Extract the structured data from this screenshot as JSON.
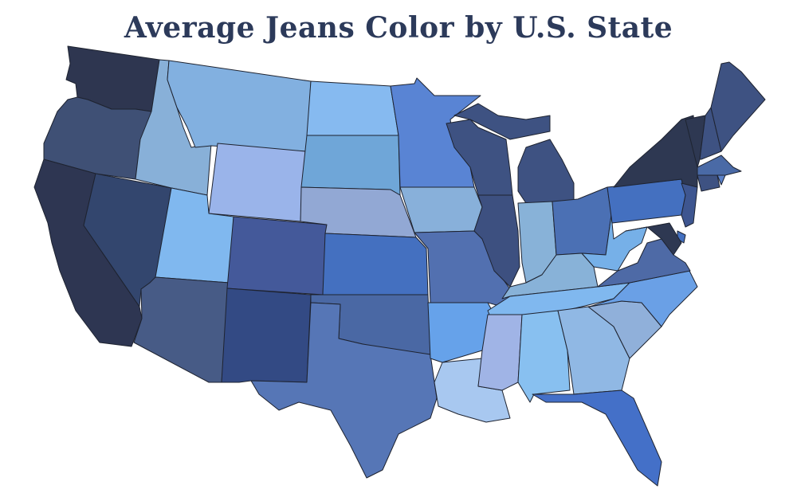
{
  "title": "Average Jeans Color by U.S. State",
  "map": {
    "type": "choropleth",
    "region": "United States (contiguous)",
    "border_color": "#1e2330",
    "state_colors": {
      "WA": "#2e3650",
      "OR": "#3f5075",
      "CA": "#2e3652",
      "NV": "#33466e",
      "ID": "#88b0d8",
      "MT": "#82b0e0",
      "WY": "#9ab4ea",
      "UT": "#80b8ef",
      "AZ": "#475b86",
      "CO": "#44599a",
      "NM": "#334a84",
      "ND": "#86baf0",
      "SD": "#6fa6d8",
      "NE": "#92a8d4",
      "KS": "#4470c0",
      "OK": "#4a68a4",
      "TX": "#5676b6",
      "MN": "#5984d4",
      "IA": "#88b0da",
      "MO": "#5270b0",
      "AR": "#66a2ea",
      "LA": "#a8c8f0",
      "WI": "#3e5282",
      "IL": "#3d5080",
      "MI": "#3e5282",
      "IN": "#88b2d8",
      "OH": "#4b70b4",
      "KY": "#88b2d8",
      "TN": "#80b8ef",
      "MS": "#a0b4e6",
      "AL": "#88c0f0",
      "GA": "#90b8e4",
      "FL": "#4470c8",
      "SC": "#90b0da",
      "NC": "#6aa0e6",
      "VA": "#4e6aa6",
      "WV": "#76b0e8",
      "PA": "#4470c0",
      "NY": "#2e3852",
      "VT": "#2e3852",
      "NH": "#3e5282",
      "ME": "#3e5282",
      "MA": "#4a6aa6",
      "CT": "#3e5282",
      "RI": "#5a80c8",
      "NJ": "#3e5690",
      "DE": "#4470c0",
      "MD": "#2e3852"
    }
  }
}
